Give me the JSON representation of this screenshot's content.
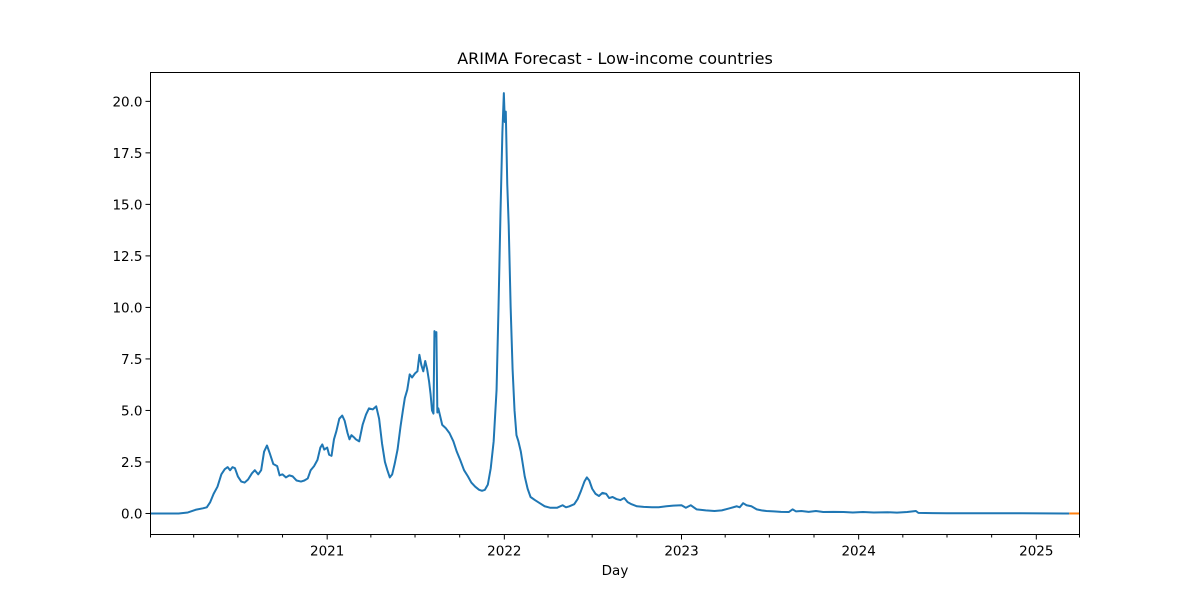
{
  "chart_data": {
    "type": "line",
    "title": "ARIMA Forecast - Low-income countries",
    "xlabel": "Day",
    "ylabel": "",
    "x_range": [
      "2020-01-03",
      "2025-03-31"
    ],
    "ylim": [
      -1.02,
      21.4
    ],
    "x_tick_labels": [
      {
        "date": "2021-01-01",
        "label": "2021"
      },
      {
        "date": "2022-01-01",
        "label": "2022"
      },
      {
        "date": "2023-01-01",
        "label": "2023"
      },
      {
        "date": "2024-01-01",
        "label": "2024"
      },
      {
        "date": "2025-01-01",
        "label": "2025"
      }
    ],
    "x_minor_ticks": [
      "2020-01-01",
      "2020-04-01",
      "2020-07-01",
      "2020-10-01",
      "2021-04-01",
      "2021-07-01",
      "2021-10-01",
      "2022-04-01",
      "2022-07-01",
      "2022-10-01",
      "2023-04-01",
      "2023-07-01",
      "2023-10-01",
      "2024-04-01",
      "2024-07-01",
      "2024-10-01",
      "2025-04-01"
    ],
    "y_ticks": [
      0,
      2.5,
      5,
      7.5,
      10,
      12.5,
      15,
      17.5,
      20
    ],
    "y_tick_labels": [
      "0.0",
      "2.5",
      "5.0",
      "7.5",
      "10.0",
      "12.5",
      "15.0",
      "17.5",
      "20.0"
    ],
    "grid": false,
    "legend": "none",
    "series": [
      {
        "color": "#1f77b4",
        "points": [
          [
            "2020-01-03",
            0.0
          ],
          [
            "2020-03-01",
            0.0
          ],
          [
            "2020-03-20",
            0.05
          ],
          [
            "2020-04-05",
            0.18
          ],
          [
            "2020-04-20",
            0.25
          ],
          [
            "2020-04-28",
            0.3
          ],
          [
            "2020-05-05",
            0.55
          ],
          [
            "2020-05-12",
            0.95
          ],
          [
            "2020-05-20",
            1.3
          ],
          [
            "2020-05-28",
            1.9
          ],
          [
            "2020-06-04",
            2.15
          ],
          [
            "2020-06-10",
            2.25
          ],
          [
            "2020-06-15",
            2.1
          ],
          [
            "2020-06-20",
            2.25
          ],
          [
            "2020-06-25",
            2.2
          ],
          [
            "2020-07-01",
            1.8
          ],
          [
            "2020-07-08",
            1.55
          ],
          [
            "2020-07-15",
            1.5
          ],
          [
            "2020-07-22",
            1.65
          ],
          [
            "2020-07-30",
            1.95
          ],
          [
            "2020-08-05",
            2.1
          ],
          [
            "2020-08-12",
            1.9
          ],
          [
            "2020-08-18",
            2.1
          ],
          [
            "2020-08-24",
            3.0
          ],
          [
            "2020-08-30",
            3.3
          ],
          [
            "2020-09-05",
            2.9
          ],
          [
            "2020-09-12",
            2.4
          ],
          [
            "2020-09-20",
            2.3
          ],
          [
            "2020-09-25",
            1.85
          ],
          [
            "2020-10-01",
            1.9
          ],
          [
            "2020-10-08",
            1.75
          ],
          [
            "2020-10-15",
            1.85
          ],
          [
            "2020-10-22",
            1.8
          ],
          [
            "2020-10-30",
            1.6
          ],
          [
            "2020-11-08",
            1.55
          ],
          [
            "2020-11-15",
            1.6
          ],
          [
            "2020-11-22",
            1.7
          ],
          [
            "2020-11-28",
            2.1
          ],
          [
            "2020-12-05",
            2.3
          ],
          [
            "2020-12-12",
            2.6
          ],
          [
            "2020-12-18",
            3.2
          ],
          [
            "2020-12-22",
            3.35
          ],
          [
            "2020-12-26",
            3.1
          ],
          [
            "2021-01-01",
            3.2
          ],
          [
            "2021-01-05",
            2.85
          ],
          [
            "2021-01-10",
            2.8
          ],
          [
            "2021-01-15",
            3.6
          ],
          [
            "2021-01-20",
            4.0
          ],
          [
            "2021-01-26",
            4.6
          ],
          [
            "2021-02-01",
            4.75
          ],
          [
            "2021-02-06",
            4.5
          ],
          [
            "2021-02-12",
            3.9
          ],
          [
            "2021-02-16",
            3.6
          ],
          [
            "2021-02-20",
            3.8
          ],
          [
            "2021-02-25",
            3.7
          ],
          [
            "2021-03-01",
            3.6
          ],
          [
            "2021-03-08",
            3.5
          ],
          [
            "2021-03-15",
            4.3
          ],
          [
            "2021-03-22",
            4.8
          ],
          [
            "2021-03-28",
            5.1
          ],
          [
            "2021-04-05",
            5.05
          ],
          [
            "2021-04-12",
            5.2
          ],
          [
            "2021-04-18",
            4.6
          ],
          [
            "2021-04-24",
            3.4
          ],
          [
            "2021-04-30",
            2.5
          ],
          [
            "2021-05-05",
            2.1
          ],
          [
            "2021-05-10",
            1.75
          ],
          [
            "2021-05-15",
            1.9
          ],
          [
            "2021-05-20",
            2.4
          ],
          [
            "2021-05-26",
            3.1
          ],
          [
            "2021-06-01",
            4.2
          ],
          [
            "2021-06-06",
            5.0
          ],
          [
            "2021-06-10",
            5.6
          ],
          [
            "2021-06-15",
            6.0
          ],
          [
            "2021-06-20",
            6.75
          ],
          [
            "2021-06-25",
            6.6
          ],
          [
            "2021-07-01",
            6.8
          ],
          [
            "2021-07-06",
            6.9
          ],
          [
            "2021-07-10",
            7.7
          ],
          [
            "2021-07-14",
            7.2
          ],
          [
            "2021-07-18",
            6.9
          ],
          [
            "2021-07-22",
            7.4
          ],
          [
            "2021-07-26",
            7.0
          ],
          [
            "2021-07-30",
            6.4
          ],
          [
            "2021-08-02",
            5.8
          ],
          [
            "2021-08-05",
            5.0
          ],
          [
            "2021-08-08",
            4.85
          ],
          [
            "2021-08-10",
            8.85
          ],
          [
            "2021-08-13",
            8.6
          ],
          [
            "2021-08-14",
            8.8
          ],
          [
            "2021-08-16",
            4.9
          ],
          [
            "2021-08-18",
            5.1
          ],
          [
            "2021-08-22",
            4.7
          ],
          [
            "2021-08-26",
            4.3
          ],
          [
            "2021-09-02",
            4.15
          ],
          [
            "2021-09-10",
            3.9
          ],
          [
            "2021-09-18",
            3.5
          ],
          [
            "2021-09-25",
            3.0
          ],
          [
            "2021-10-02",
            2.6
          ],
          [
            "2021-10-10",
            2.1
          ],
          [
            "2021-10-18",
            1.8
          ],
          [
            "2021-10-25",
            1.5
          ],
          [
            "2021-11-02",
            1.3
          ],
          [
            "2021-11-10",
            1.15
          ],
          [
            "2021-11-16",
            1.1
          ],
          [
            "2021-11-22",
            1.15
          ],
          [
            "2021-11-28",
            1.4
          ],
          [
            "2021-12-04",
            2.2
          ],
          [
            "2021-12-10",
            3.5
          ],
          [
            "2021-12-16",
            6.0
          ],
          [
            "2021-12-20",
            10.0
          ],
          [
            "2021-12-24",
            14.5
          ],
          [
            "2021-12-28",
            18.5
          ],
          [
            "2021-12-31",
            20.4
          ],
          [
            "2022-01-02",
            19.0
          ],
          [
            "2022-01-04",
            19.5
          ],
          [
            "2022-01-07",
            16.0
          ],
          [
            "2022-01-10",
            14.0
          ],
          [
            "2022-01-14",
            10.0
          ],
          [
            "2022-01-18",
            7.0
          ],
          [
            "2022-01-22",
            5.0
          ],
          [
            "2022-01-26",
            3.8
          ],
          [
            "2022-01-30",
            3.5
          ],
          [
            "2022-02-04",
            3.0
          ],
          [
            "2022-02-08",
            2.4
          ],
          [
            "2022-02-12",
            1.8
          ],
          [
            "2022-02-18",
            1.2
          ],
          [
            "2022-02-24",
            0.8
          ],
          [
            "2022-03-05",
            0.65
          ],
          [
            "2022-03-15",
            0.5
          ],
          [
            "2022-03-25",
            0.35
          ],
          [
            "2022-04-05",
            0.28
          ],
          [
            "2022-04-20",
            0.28
          ],
          [
            "2022-05-01",
            0.4
          ],
          [
            "2022-05-08",
            0.3
          ],
          [
            "2022-05-15",
            0.35
          ],
          [
            "2022-05-25",
            0.45
          ],
          [
            "2022-06-01",
            0.7
          ],
          [
            "2022-06-08",
            1.1
          ],
          [
            "2022-06-15",
            1.55
          ],
          [
            "2022-06-20",
            1.75
          ],
          [
            "2022-06-25",
            1.6
          ],
          [
            "2022-07-01",
            1.2
          ],
          [
            "2022-07-08",
            0.95
          ],
          [
            "2022-07-15",
            0.85
          ],
          [
            "2022-07-22",
            1.0
          ],
          [
            "2022-07-30",
            0.95
          ],
          [
            "2022-08-05",
            0.75
          ],
          [
            "2022-08-12",
            0.8
          ],
          [
            "2022-08-20",
            0.7
          ],
          [
            "2022-08-28",
            0.65
          ],
          [
            "2022-09-05",
            0.75
          ],
          [
            "2022-09-12",
            0.55
          ],
          [
            "2022-09-20",
            0.45
          ],
          [
            "2022-10-01",
            0.35
          ],
          [
            "2022-10-15",
            0.32
          ],
          [
            "2022-11-01",
            0.3
          ],
          [
            "2022-11-15",
            0.3
          ],
          [
            "2022-12-01",
            0.35
          ],
          [
            "2022-12-15",
            0.38
          ],
          [
            "2023-01-01",
            0.4
          ],
          [
            "2023-01-10",
            0.28
          ],
          [
            "2023-01-20",
            0.4
          ],
          [
            "2023-02-01",
            0.2
          ],
          [
            "2023-02-20",
            0.15
          ],
          [
            "2023-03-10",
            0.12
          ],
          [
            "2023-03-25",
            0.15
          ],
          [
            "2023-04-10",
            0.25
          ],
          [
            "2023-04-25",
            0.35
          ],
          [
            "2023-05-01",
            0.3
          ],
          [
            "2023-05-08",
            0.5
          ],
          [
            "2023-05-15",
            0.4
          ],
          [
            "2023-05-25",
            0.35
          ],
          [
            "2023-06-05",
            0.2
          ],
          [
            "2023-06-15",
            0.15
          ],
          [
            "2023-06-25",
            0.12
          ],
          [
            "2023-07-10",
            0.1
          ],
          [
            "2023-07-25",
            0.08
          ],
          [
            "2023-08-10",
            0.07
          ],
          [
            "2023-08-18",
            0.2
          ],
          [
            "2023-08-25",
            0.1
          ],
          [
            "2023-09-05",
            0.12
          ],
          [
            "2023-09-20",
            0.08
          ],
          [
            "2023-10-05",
            0.12
          ],
          [
            "2023-10-20",
            0.07
          ],
          [
            "2023-11-10",
            0.08
          ],
          [
            "2023-12-01",
            0.07
          ],
          [
            "2023-12-20",
            0.05
          ],
          [
            "2024-01-10",
            0.07
          ],
          [
            "2024-02-01",
            0.05
          ],
          [
            "2024-03-01",
            0.06
          ],
          [
            "2024-03-20",
            0.04
          ],
          [
            "2024-04-10",
            0.07
          ],
          [
            "2024-04-28",
            0.12
          ],
          [
            "2024-05-03",
            0.03
          ],
          [
            "2024-06-01",
            0.02
          ],
          [
            "2024-07-01",
            0.01
          ],
          [
            "2024-09-01",
            0.01
          ],
          [
            "2024-12-01",
            0.01
          ],
          [
            "2025-03-01",
            0.0
          ],
          [
            "2025-03-10",
            0.0
          ]
        ]
      },
      {
        "color": "#ff7f0e",
        "points": [
          [
            "2025-03-10",
            0.0
          ],
          [
            "2025-03-31",
            0.0
          ]
        ]
      }
    ]
  }
}
